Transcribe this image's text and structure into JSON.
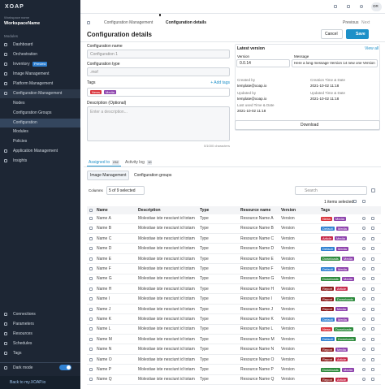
{
  "sidebar": {
    "logo": "XOAP",
    "workspace_label": "Workspace name",
    "workspace": "WorkspaceName",
    "modules_label": "Modules",
    "nav_top": [
      {
        "label": "Dashboard"
      },
      {
        "label": "Orchestration"
      },
      {
        "label": "Inventory",
        "badge": "Preview"
      },
      {
        "label": "Image Management"
      },
      {
        "label": "Platform Management"
      },
      {
        "label": "Configuration Management"
      }
    ],
    "nav_sub": [
      "Nodes",
      "Configuration Groups",
      "Configuration",
      "Modules",
      "Policies"
    ],
    "nav_rest": [
      "Application Management",
      "Insights"
    ],
    "footer_nav": [
      "Connections",
      "Parameters",
      "Resources",
      "Schedules",
      "Tags"
    ],
    "dark_mode": "Dark mode",
    "back_link": "Back to my.XOAP.io"
  },
  "topbar": {
    "breadcrumbs": [
      "Configuration Management",
      "Configuration details"
    ],
    "avatar": "OR"
  },
  "header": {
    "title": "Configuration details",
    "previous": "Previous",
    "next": "Next",
    "cancel": "Cancel",
    "save": "Save"
  },
  "form": {
    "name_label": "Configuration name",
    "name_value": "Configuration 1",
    "type_label": "Configuration type",
    "type_value": ".mof",
    "tags_label": "Tags",
    "add_tags": "+ Add tags",
    "tags": [
      {
        "label": "News",
        "color": "#d9363e"
      },
      {
        "label": "Media",
        "color": "#8e44ad"
      }
    ],
    "description_label": "Description (Optional)",
    "description_placeholder": "Enter a description...",
    "counter": "0/1000 characters"
  },
  "version_panel": {
    "title": "Latest version",
    "view_all": "View all",
    "version_label": "Version",
    "version_value": "0.0.14",
    "message_label": "Message",
    "message_value": "Here a long message Version 14 new one Version 1...",
    "created_by_label": "Created by",
    "created_by": "template@xoap.io",
    "creation_label": "Creation Time & Date",
    "creation": "2021-10-02 11:18",
    "updated_by_label": "Updated by",
    "updated_by": "template@xoap.io",
    "updated_label": "Updated Time & Date",
    "updated": "2021-10-02 11:18",
    "last_used_label": "Last used Time & Date",
    "last_used": "2021-10-02 11:18",
    "download": "Download"
  },
  "tabs": [
    {
      "label": "Assigned to",
      "count": 232
    },
    {
      "label": "Activity log",
      "count": 10
    }
  ],
  "subtabs": [
    "Image Management",
    "Configuration groups"
  ],
  "toolbar": {
    "columns_label": "Columns",
    "columns_value": "5 of 9 selected",
    "search": "Search",
    "selected": "1 items selected"
  },
  "table": {
    "columns": [
      "Name",
      "Description",
      "Type",
      "Resource name",
      "Version",
      "Tags"
    ],
    "rows": [
      {
        "name": "Name A",
        "description": "Molestiae iste nesciunt id totam",
        "type": "Type",
        "resource": "Resource Name A",
        "version": "Version",
        "tags": [
          {
            "label": "News",
            "color": "#d9363e"
          },
          {
            "label": "Media",
            "color": "#8e44ad"
          }
        ]
      },
      {
        "name": "Name B",
        "description": "Molestiae iste nesciunt id totam",
        "type": "Type",
        "resource": "Resource Name B",
        "version": "Version",
        "tags": [
          {
            "label": "Default",
            "color": "#2f80d1"
          },
          {
            "label": "Media",
            "color": "#8e44ad"
          }
        ]
      },
      {
        "name": "Name C",
        "description": "Molestiae iste nesciunt id totam",
        "type": "Type",
        "resource": "Resource Name C",
        "version": "Version",
        "tags": [
          {
            "label": "Article",
            "color": "#c62a4a"
          },
          {
            "label": "Media",
            "color": "#8e44ad"
          }
        ]
      },
      {
        "name": "Name D",
        "description": "Molestiae iste nesciunt id totam",
        "type": "Type",
        "resource": "Resource Name D",
        "version": "Version",
        "tags": [
          {
            "label": "Default",
            "color": "#2f80d1"
          },
          {
            "label": "Media",
            "color": "#8e44ad"
          }
        ]
      },
      {
        "name": "Name E",
        "description": "Molestiae iste nesciunt id totam",
        "type": "Type",
        "resource": "Resource Name E",
        "version": "Version",
        "tags": [
          {
            "label": "Downloads",
            "color": "#2e8b3e"
          },
          {
            "label": "Media",
            "color": "#8e44ad"
          }
        ]
      },
      {
        "name": "Name F",
        "description": "Molestiae iste nesciunt id totam",
        "type": "Type",
        "resource": "Resource Name F",
        "version": "Version",
        "tags": [
          {
            "label": "Default",
            "color": "#2f80d1"
          },
          {
            "label": "Media",
            "color": "#8e44ad"
          }
        ]
      },
      {
        "name": "Name G",
        "description": "Molestiae iste nesciunt id totam",
        "type": "Type",
        "resource": "Resource Name G",
        "version": "Version",
        "tags": [
          {
            "label": "Downloads",
            "color": "#2e8b3e"
          },
          {
            "label": "Media",
            "color": "#8e44ad"
          }
        ]
      },
      {
        "name": "Name H",
        "description": "Molestiae iste nesciunt id totam",
        "type": "Type",
        "resource": "Resource Name H",
        "version": "Version",
        "tags": [
          {
            "label": "Report",
            "color": "#8b1a1a"
          },
          {
            "label": "Article",
            "color": "#c62a4a"
          }
        ]
      },
      {
        "name": "Name I",
        "description": "Molestiae iste nesciunt id totam",
        "type": "Type",
        "resource": "Resource Name I",
        "version": "Version",
        "tags": [
          {
            "label": "Report",
            "color": "#8b1a1a"
          },
          {
            "label": "Downloads",
            "color": "#2e8b3e"
          }
        ]
      },
      {
        "name": "Name J",
        "description": "Molestiae iste nesciunt id totam",
        "type": "Type",
        "resource": "Resource Name J",
        "version": "Version",
        "tags": [
          {
            "label": "Report",
            "color": "#8b1a1a"
          },
          {
            "label": "Media",
            "color": "#8e44ad"
          }
        ]
      },
      {
        "name": "Name K",
        "description": "Molestiae iste nesciunt id totam",
        "type": "Type",
        "resource": "Resource Name K",
        "version": "Version",
        "tags": [
          {
            "label": "Default",
            "color": "#2f80d1"
          },
          {
            "label": "Media",
            "color": "#8e44ad"
          }
        ]
      },
      {
        "name": "Name L",
        "description": "Molestiae iste nesciunt id totam",
        "type": "Type",
        "resource": "Resource Name L",
        "version": "Version",
        "tags": [
          {
            "label": "News",
            "color": "#d9363e"
          },
          {
            "label": "Downloads",
            "color": "#2e8b3e"
          }
        ]
      },
      {
        "name": "Name M",
        "description": "Molestiae iste nesciunt id totam",
        "type": "Type",
        "resource": "Resource Name M",
        "version": "Version",
        "tags": [
          {
            "label": "Default",
            "color": "#2f80d1"
          },
          {
            "label": "Downloads",
            "color": "#2e8b3e"
          }
        ]
      },
      {
        "name": "Name N",
        "description": "Molestiae iste nesciunt id totam",
        "type": "Type",
        "resource": "Resource Name N",
        "version": "Version",
        "tags": [
          {
            "label": "Report",
            "color": "#8b1a1a"
          },
          {
            "label": "Media",
            "color": "#8e44ad"
          }
        ]
      },
      {
        "name": "Name O",
        "description": "Molestiae iste nesciunt id totam",
        "type": "Type",
        "resource": "Resource Name O",
        "version": "Version",
        "tags": [
          {
            "label": "Report",
            "color": "#8b1a1a"
          },
          {
            "label": "Article",
            "color": "#c62a4a"
          }
        ]
      },
      {
        "name": "Name P",
        "description": "Molestiae iste nesciunt id totam",
        "type": "Type",
        "resource": "Resource Name P",
        "version": "Version",
        "tags": [
          {
            "label": "Downloads",
            "color": "#2e8b3e"
          },
          {
            "label": "Media",
            "color": "#8e44ad"
          }
        ]
      },
      {
        "name": "Name Q",
        "description": "Molestiae iste nesciunt id totam",
        "type": "Type",
        "resource": "Resource Name Q",
        "version": "Version",
        "tags": [
          {
            "label": "Report",
            "color": "#8b1a1a"
          },
          {
            "label": "Article",
            "color": "#c62a4a"
          }
        ]
      }
    ]
  }
}
